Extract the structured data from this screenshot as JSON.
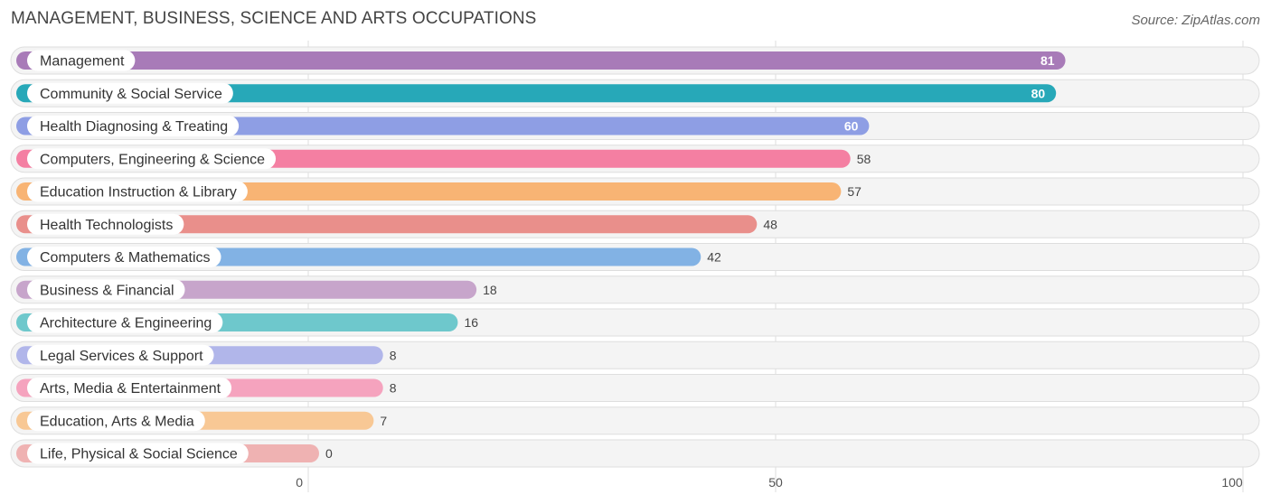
{
  "header": {
    "title": "MANAGEMENT, BUSINESS, SCIENCE AND ARTS OCCUPATIONS",
    "source": "Source: ZipAtlas.com"
  },
  "chart_data": {
    "type": "bar",
    "orientation": "horizontal",
    "title": "MANAGEMENT, BUSINESS, SCIENCE AND ARTS OCCUPATIONS",
    "xlim": [
      0,
      100
    ],
    "x_ticks": [
      "0",
      "50",
      "100"
    ],
    "grid": true,
    "categories": [
      "Management",
      "Community & Social Service",
      "Health Diagnosing & Treating",
      "Computers, Engineering & Science",
      "Education Instruction & Library",
      "Health Technologists",
      "Computers & Mathematics",
      "Business & Financial",
      "Architecture & Engineering",
      "Legal Services & Support",
      "Arts, Media & Entertainment",
      "Education, Arts & Media",
      "Life, Physical & Social Science"
    ],
    "values": [
      81,
      80,
      60,
      58,
      57,
      48,
      42,
      18,
      16,
      8,
      8,
      7,
      0
    ],
    "value_labels": [
      "81",
      "80",
      "60",
      "58",
      "57",
      "48",
      "42",
      "18",
      "16",
      "8",
      "8",
      "7",
      "0"
    ],
    "colors": [
      "#a87bb8",
      "#27a8b8",
      "#8e9ee4",
      "#f47fa2",
      "#f8b474",
      "#e98f8b",
      "#82b2e4",
      "#c7a5cb",
      "#6ec8cc",
      "#b1b6ea",
      "#f5a3be",
      "#f8c895",
      "#efb2b2"
    ]
  }
}
